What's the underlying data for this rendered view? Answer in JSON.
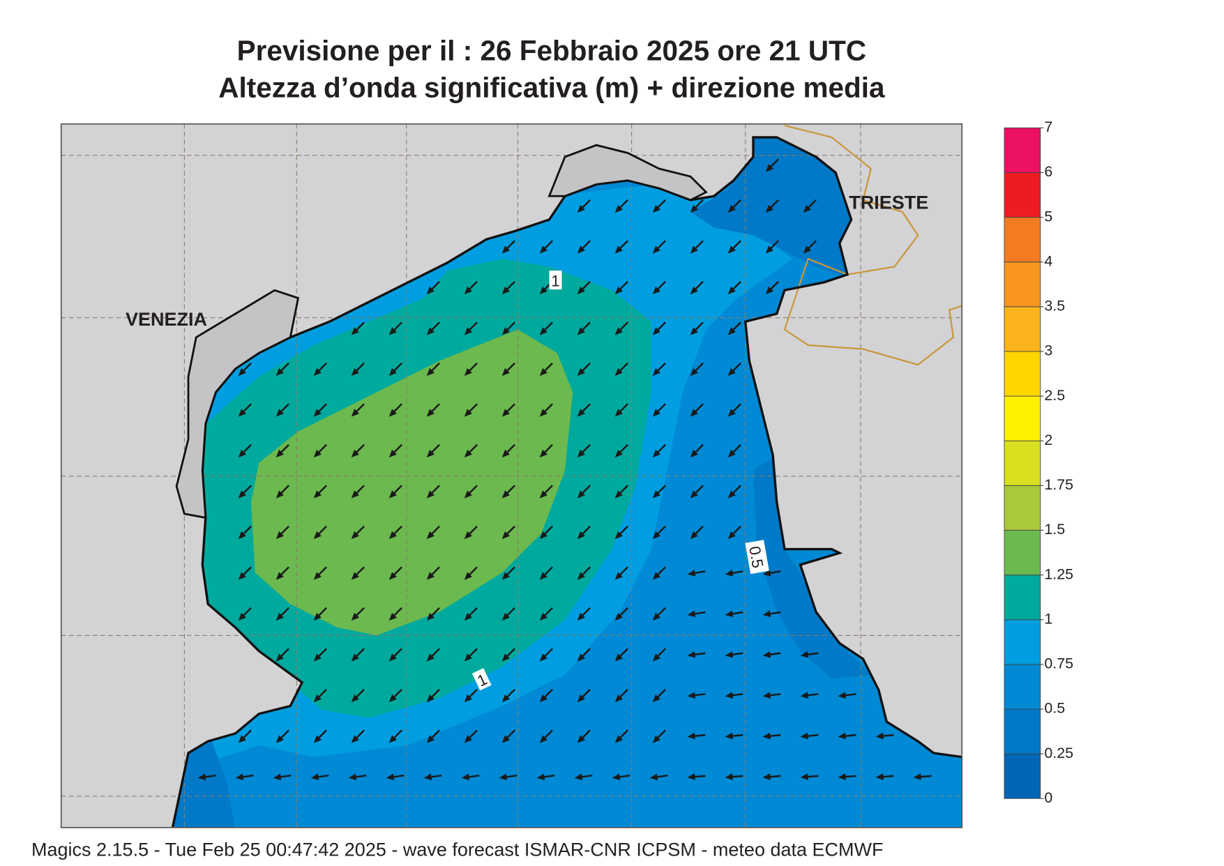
{
  "title": [
    "Previsione per il  :  26  Febbraio 2025   ore 21 UTC",
    "Altezza d’onda significativa (m) + direzione media"
  ],
  "places": [
    "VENEZIA",
    "TRIESTE"
  ],
  "contour_labels": [
    1,
    1,
    0.5
  ],
  "colorbar": {
    "ticks": [
      0,
      0.25,
      0.5,
      0.75,
      1,
      1.25,
      1.5,
      1.75,
      2,
      2.5,
      3,
      3.5,
      4,
      5,
      6,
      7
    ],
    "colors": [
      "#0066b8",
      "#0079c8",
      "#0089d4",
      "#009ee0",
      "#00a99d",
      "#6cb94f",
      "#a9c83a",
      "#d8e020",
      "#fff200",
      "#ffd500",
      "#fbb41b",
      "#f7951d",
      "#f47b20",
      "#ed1c24",
      "#ec1163"
    ]
  },
  "footer": "Magics 2.15.5 - Tue Feb 25 00:47:42 2025 - wave forecast  ISMAR-CNR  ICPSM - meteo data   ECMWF"
}
